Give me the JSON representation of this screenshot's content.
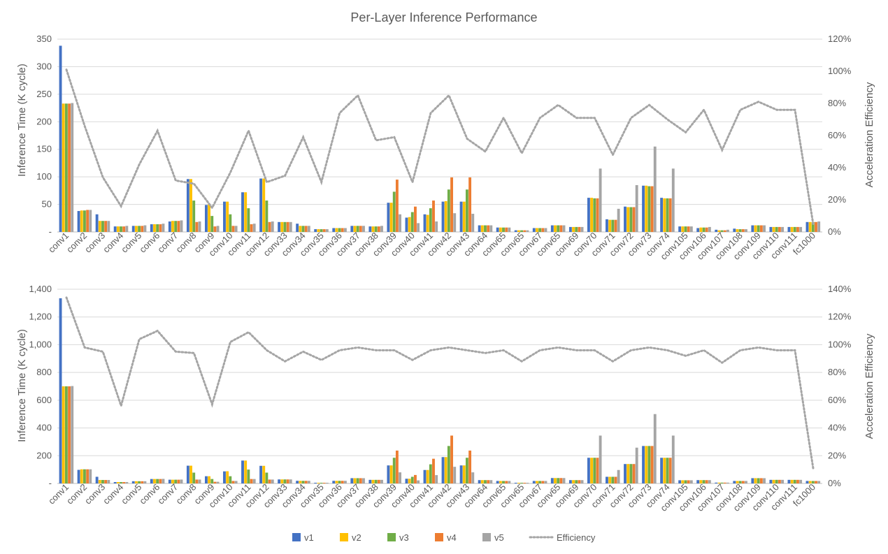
{
  "chart_data": {
    "type": "bar",
    "title": "Per-Layer Inference Performance",
    "categories": [
      "conv1",
      "conv2",
      "conv3",
      "conv4",
      "conv5",
      "conv6",
      "conv7",
      "conv8",
      "conv9",
      "conv10",
      "conv11",
      "conv12",
      "conv33",
      "conv34",
      "conv35",
      "conv36",
      "conv37",
      "conv38",
      "conv39",
      "conv40",
      "conv41",
      "conv42",
      "conv43",
      "conv64",
      "conv65",
      "conv65",
      "conv67",
      "conv65",
      "conv69",
      "conv70",
      "conv71",
      "conv72",
      "conv73",
      "conv74",
      "conv105",
      "conv106",
      "conv107",
      "conv108",
      "conv109",
      "conv110",
      "conv111",
      "fc1000"
    ],
    "legend": {
      "position": "bottom",
      "entries": [
        {
          "name": "v1",
          "color": "#4472C4",
          "kind": "bar"
        },
        {
          "name": "v2",
          "color": "#FFC000",
          "kind": "bar"
        },
        {
          "name": "v3",
          "color": "#70AD47",
          "kind": "bar"
        },
        {
          "name": "v4",
          "color": "#ED7D31",
          "kind": "bar"
        },
        {
          "name": "v5",
          "color": "#A5A5A5",
          "kind": "bar"
        },
        {
          "name": "Efficiency",
          "color": "#A5A5A5",
          "kind": "line-dotted"
        }
      ]
    },
    "panels": [
      {
        "ylabel": "Inference Time (K cycle)",
        "y2label": "Acceleration Efficiency",
        "ylim": [
          0,
          350
        ],
        "yticks": [
          "-",
          "50",
          "100",
          "150",
          "200",
          "250",
          "300",
          "350"
        ],
        "y2lim": [
          0,
          1.2
        ],
        "y2ticks": [
          "0%",
          "20%",
          "40%",
          "60%",
          "80%",
          "100%",
          "120%"
        ],
        "grid": true,
        "series": [
          {
            "name": "v1",
            "values": [
              338,
              38,
              32,
              10,
              11,
              14,
              19,
              96,
              49,
              55,
              72,
              97,
              18,
              15,
              5,
              7,
              11,
              10,
              53,
              26,
              32,
              55,
              55,
              12,
              8,
              3,
              7,
              12,
              9,
              62,
              23,
              46,
              84,
              62,
              10,
              7,
              4,
              6,
              12,
              9,
              9,
              18
            ]
          },
          {
            "name": "v2",
            "values": [
              233,
              39,
              20,
              10,
              11,
              14,
              20,
              96,
              50,
              55,
              72,
              97,
              18,
              11,
              5,
              7,
              11,
              10,
              53,
              27,
              31,
              56,
              55,
              12,
              8,
              3,
              7,
              12,
              9,
              62,
              22,
              45,
              84,
              61,
              10,
              8,
              3,
              5,
              12,
              9,
              9,
              18
            ]
          },
          {
            "name": "v3",
            "values": [
              233,
              39,
              20,
              10,
              11,
              14,
              20,
              57,
              29,
              32,
              43,
              57,
              18,
              11,
              5,
              7,
              11,
              10,
              73,
              36,
              43,
              77,
              77,
              12,
              8,
              3,
              7,
              12,
              9,
              61,
              22,
              45,
              83,
              61,
              10,
              8,
              3,
              5,
              12,
              9,
              9,
              18
            ]
          },
          {
            "name": "v4",
            "values": [
              233,
              40,
              20,
              10,
              11,
              14,
              20,
              18,
              10,
              11,
              14,
              18,
              18,
              11,
              5,
              7,
              11,
              10,
              95,
              46,
              57,
              99,
              99,
              12,
              8,
              3,
              7,
              12,
              9,
              61,
              22,
              45,
              83,
              61,
              10,
              8,
              3,
              5,
              12,
              9,
              9,
              18
            ]
          },
          {
            "name": "v5",
            "values": [
              234,
              40,
              20,
              11,
              12,
              15,
              21,
              19,
              11,
              11,
              15,
              19,
              18,
              11,
              5,
              7,
              11,
              11,
              32,
              16,
              19,
              34,
              33,
              12,
              8,
              3,
              7,
              12,
              9,
              115,
              42,
              85,
              155,
              115,
              10,
              9,
              4,
              5,
              12,
              9,
              9,
              19
            ]
          },
          {
            "name": "Efficiency",
            "values": [
              1.01,
              0.66,
              0.34,
              0.16,
              0.42,
              0.63,
              0.32,
              0.3,
              0.15,
              0.37,
              0.63,
              0.31,
              0.35,
              0.59,
              0.31,
              0.74,
              0.85,
              0.57,
              0.59,
              0.31,
              0.74,
              0.85,
              0.58,
              0.5,
              0.71,
              0.49,
              0.71,
              0.79,
              0.71,
              0.71,
              0.48,
              0.71,
              0.79,
              0.7,
              0.62,
              0.76,
              0.51,
              0.76,
              0.81,
              0.76,
              0.76,
              0.05
            ]
          }
        ]
      },
      {
        "ylabel": "Inference Time (K cycle)",
        "y2label": "Acceleration Efficiency",
        "ylim": [
          0,
          1400
        ],
        "yticks": [
          "-",
          "200",
          "400",
          "600",
          "800",
          "1,000",
          "1,200",
          "1,400"
        ],
        "y2lim": [
          0,
          1.4
        ],
        "y2ticks": [
          "0%",
          "20%",
          "40%",
          "60%",
          "80%",
          "100%",
          "120%",
          "140%"
        ],
        "grid": true,
        "series": [
          {
            "name": "v1",
            "values": [
              1335,
              98,
              48,
              10,
              16,
              32,
              27,
              128,
              52,
              87,
              165,
              127,
              29,
              19,
              5,
              19,
              38,
              26,
              130,
              34,
              97,
              190,
              130,
              24,
              18,
              5,
              18,
              39,
              24,
              185,
              48,
              140,
              270,
              185,
              23,
              24,
              6,
              18,
              38,
              26,
              26,
              18
            ]
          },
          {
            "name": "v2",
            "values": [
              700,
              102,
              25,
              10,
              16,
              32,
              27,
              128,
              52,
              88,
              165,
              127,
              29,
              19,
              5,
              19,
              38,
              26,
              130,
              34,
              97,
              190,
              130,
              24,
              18,
              5,
              18,
              39,
              24,
              185,
              48,
              140,
              270,
              185,
              23,
              24,
              6,
              18,
              38,
              26,
              26,
              18
            ]
          },
          {
            "name": "v3",
            "values": [
              700,
              102,
              25,
              10,
              16,
              32,
              27,
              78,
              32,
              52,
              100,
              78,
              29,
              19,
              5,
              19,
              38,
              26,
              185,
              48,
              138,
              270,
              185,
              24,
              18,
              5,
              18,
              39,
              24,
              185,
              48,
              140,
              270,
              185,
              23,
              24,
              6,
              18,
              38,
              26,
              26,
              18
            ]
          },
          {
            "name": "v4",
            "values": [
              700,
              102,
              25,
              10,
              16,
              32,
              27,
              28,
              12,
              18,
              32,
              28,
              29,
              19,
              5,
              19,
              38,
              26,
              237,
              61,
              178,
              345,
              237,
              24,
              18,
              5,
              18,
              39,
              24,
              185,
              48,
              140,
              270,
              185,
              23,
              24,
              6,
              18,
              38,
              26,
              26,
              18
            ]
          },
          {
            "name": "v5",
            "values": [
              702,
              102,
              25,
              10,
              16,
              33,
              28,
              28,
              12,
              18,
              32,
              28,
              29,
              19,
              5,
              19,
              38,
              26,
              80,
              22,
              60,
              120,
              80,
              24,
              18,
              5,
              18,
              39,
              24,
              345,
              97,
              258,
              500,
              345,
              23,
              24,
              6,
              18,
              38,
              26,
              26,
              18
            ]
          },
          {
            "name": "Efficiency",
            "values": [
              1.34,
              0.98,
              0.95,
              0.56,
              1.04,
              1.1,
              0.95,
              0.94,
              0.57,
              1.02,
              1.09,
              0.96,
              0.88,
              0.95,
              0.89,
              0.96,
              0.98,
              0.96,
              0.96,
              0.89,
              0.96,
              0.98,
              0.96,
              0.94,
              0.96,
              0.88,
              0.96,
              0.98,
              0.96,
              0.96,
              0.88,
              0.96,
              0.98,
              0.96,
              0.92,
              0.96,
              0.87,
              0.96,
              0.98,
              0.96,
              0.96,
              0.11
            ]
          }
        ]
      }
    ]
  }
}
